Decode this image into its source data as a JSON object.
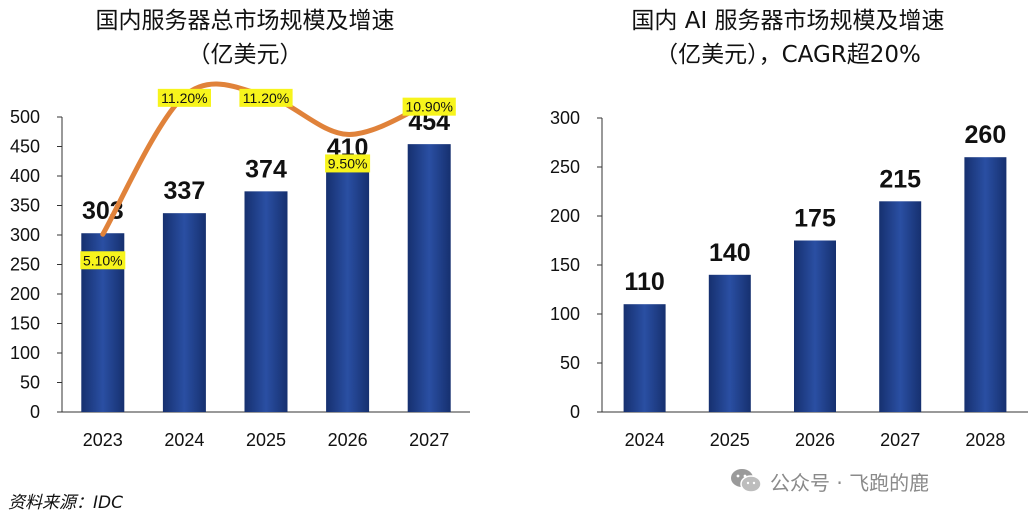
{
  "chart_data": [
    {
      "type": "bar",
      "title": "国内服务器总市场规模及增速",
      "subtitle": "（亿美元）",
      "categories": [
        "2023",
        "2024",
        "2025",
        "2026",
        "2027"
      ],
      "values": [
        303,
        337,
        374,
        410,
        454
      ],
      "value_labels": [
        "303",
        "337",
        "374",
        "410",
        "454"
      ],
      "ylim": [
        0,
        500
      ],
      "yticks": [
        "0",
        "50",
        "100",
        "150",
        "200",
        "250",
        "300",
        "350",
        "400",
        "450",
        "500"
      ],
      "growth_rates": [
        5.1,
        11.2,
        11.2,
        9.5,
        10.9
      ],
      "growth_labels": [
        "5.10%",
        "11.20%",
        "11.20%",
        "9.50%",
        "10.90%"
      ],
      "grid": false,
      "bar_color": "#1f3f8f",
      "line_color": "#e0823a",
      "label_highlight": "#f7f41c"
    },
    {
      "type": "bar",
      "title": "国内 AI 服务器市场规模及增速",
      "subtitle": "（亿美元），CAGR超20%",
      "categories": [
        "2024",
        "2025",
        "2026",
        "2027",
        "2028"
      ],
      "values": [
        110,
        140,
        175,
        215,
        260
      ],
      "value_labels": [
        "110",
        "140",
        "175",
        "215",
        "260"
      ],
      "ylim": [
        0,
        300
      ],
      "yticks": [
        "0",
        "50",
        "100",
        "150",
        "200",
        "250",
        "300"
      ],
      "grid": false,
      "bar_color": "#1f3f8f"
    }
  ],
  "source": "资料来源：IDC",
  "watermark": {
    "text": "公众号 · 飞跑的鹿",
    "icon": "wechat-icon"
  }
}
